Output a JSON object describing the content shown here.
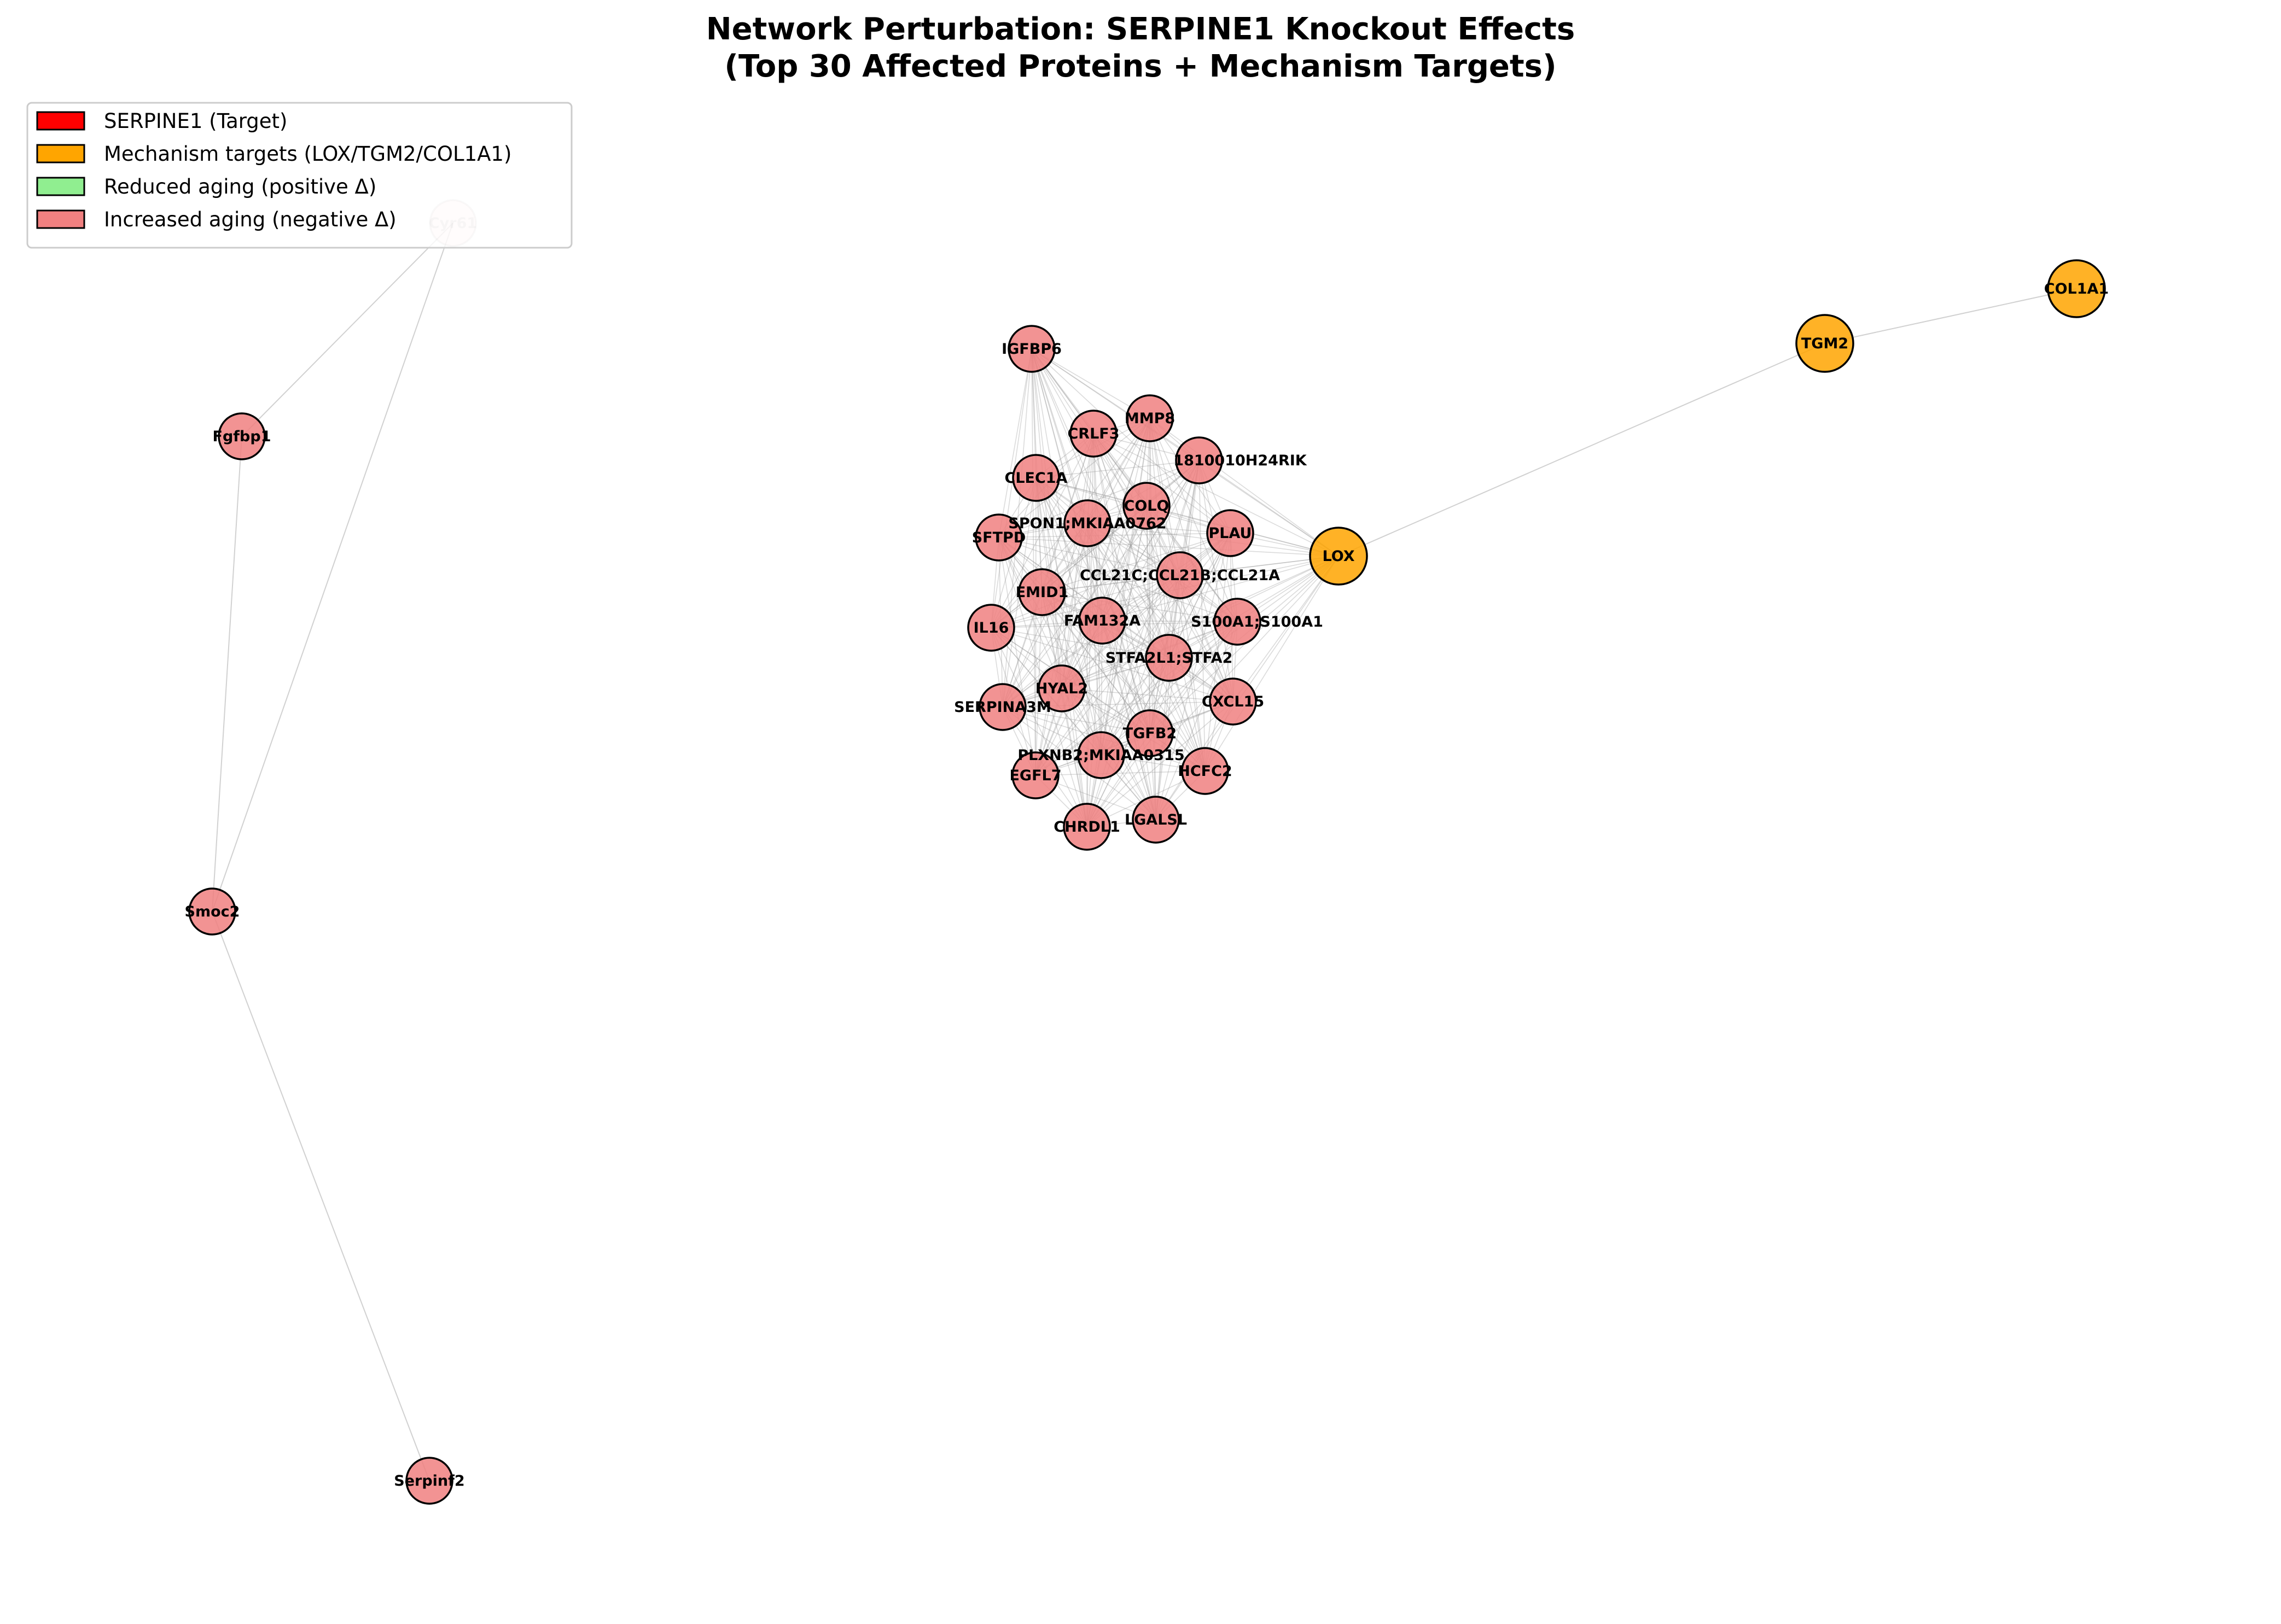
{
  "title": {
    "line1": "Network Perturbation: SERPINE1 Knockout Effects",
    "line2": "(Top 30 Affected Proteins + Mechanism Targets)"
  },
  "colors": {
    "target": "#ff0000",
    "mechanism": "#ffa500",
    "reduced": "#90ee90",
    "increased": "#f08080",
    "edge": "#999999",
    "node_stroke": "#000000"
  },
  "legend": [
    {
      "label": "SERPINE1 (Target)",
      "color_key": "target"
    },
    {
      "label": "Mechanism targets (LOX/TGM2/COL1A1)",
      "color_key": "mechanism"
    },
    {
      "label": "Reduced aging (positive Δ)",
      "color_key": "reduced"
    },
    {
      "label": "Increased aging (negative Δ)",
      "color_key": "increased"
    }
  ],
  "nodes": [
    {
      "id": "Cyr61",
      "group": "increased",
      "faded": true
    },
    {
      "id": "Fgfbp1",
      "group": "increased"
    },
    {
      "id": "Smoc2",
      "group": "increased"
    },
    {
      "id": "Serpinf2",
      "group": "increased"
    },
    {
      "id": "IGFBP6",
      "group": "increased"
    },
    {
      "id": "MMP8",
      "group": "increased"
    },
    {
      "id": "CRLF3",
      "group": "increased"
    },
    {
      "id": "1810010H24RIK",
      "group": "increased"
    },
    {
      "id": "CLEC1A",
      "group": "increased"
    },
    {
      "id": "COLQ",
      "group": "increased"
    },
    {
      "id": "SPON1;MKIAA0762",
      "group": "increased"
    },
    {
      "id": "PLAU",
      "group": "increased"
    },
    {
      "id": "SFTPD",
      "group": "increased"
    },
    {
      "id": "CCL21C;CCL21B;CCL21A",
      "group": "increased"
    },
    {
      "id": "EMID1",
      "group": "increased"
    },
    {
      "id": "FAM132A",
      "group": "increased"
    },
    {
      "id": "S100A1;S100A1",
      "group": "increased"
    },
    {
      "id": "IL16",
      "group": "increased"
    },
    {
      "id": "STFA2L1;STFA2",
      "group": "increased"
    },
    {
      "id": "HYAL2",
      "group": "increased"
    },
    {
      "id": "CXCL15",
      "group": "increased"
    },
    {
      "id": "SERPINA3M",
      "group": "increased"
    },
    {
      "id": "TGFB2",
      "group": "increased"
    },
    {
      "id": "PLXNB2;MKIAA0315",
      "group": "increased"
    },
    {
      "id": "HCFC2",
      "group": "increased"
    },
    {
      "id": "EGFL7",
      "group": "increased"
    },
    {
      "id": "LGALSL",
      "group": "increased"
    },
    {
      "id": "CHRDL1",
      "group": "increased"
    },
    {
      "id": "LOX",
      "group": "mechanism"
    },
    {
      "id": "TGM2",
      "group": "mechanism"
    },
    {
      "id": "COL1A1",
      "group": "mechanism"
    }
  ],
  "edges": [
    [
      "Cyr61",
      "Fgfbp1"
    ],
    [
      "Cyr61",
      "Smoc2"
    ],
    [
      "Fgfbp1",
      "Smoc2"
    ],
    [
      "Smoc2",
      "Serpinf2"
    ],
    [
      "LOX",
      "TGM2"
    ],
    [
      "TGM2",
      "COL1A1"
    ]
  ],
  "cluster": [
    "IGFBP6",
    "MMP8",
    "CRLF3",
    "1810010H24RIK",
    "CLEC1A",
    "COLQ",
    "SPON1;MKIAA0762",
    "PLAU",
    "SFTPD",
    "CCL21C;CCL21B;CCL21A",
    "EMID1",
    "FAM132A",
    "S100A1;S100A1",
    "IL16",
    "STFA2L1;STFA2",
    "HYAL2",
    "CXCL15",
    "SERPINA3M",
    "TGFB2",
    "PLXNB2;MKIAA0315",
    "HCFC2",
    "EGFL7",
    "LGALSL",
    "CHRDL1",
    "LOX"
  ]
}
